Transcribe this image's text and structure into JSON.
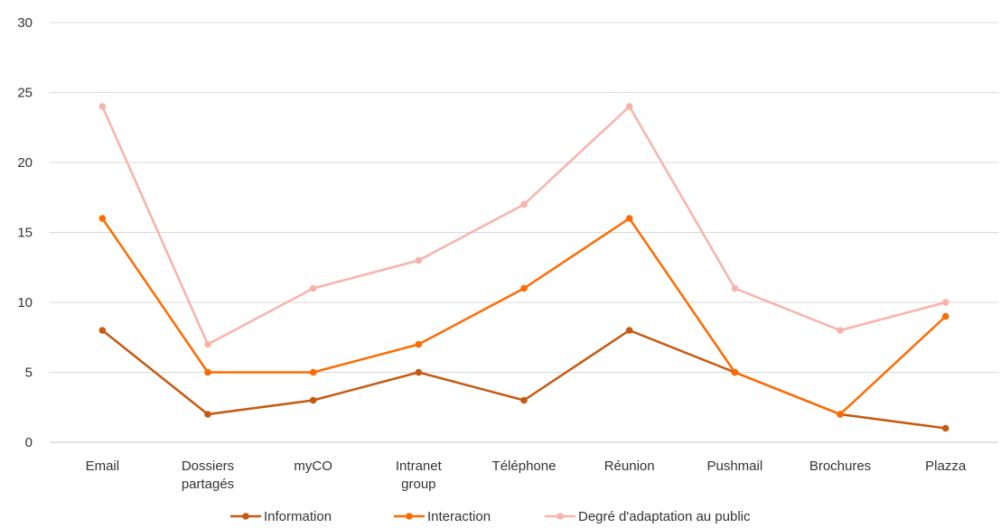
{
  "chart_data": {
    "type": "line",
    "categories": [
      [
        "Email"
      ],
      [
        "Dossiers",
        "partagés"
      ],
      [
        "myCO"
      ],
      [
        "Intranet",
        "group"
      ],
      [
        "Téléphone"
      ],
      [
        "Réunion"
      ],
      [
        "Pushmail"
      ],
      [
        "Brochures"
      ],
      [
        "Plazza"
      ]
    ],
    "ylim": [
      0,
      30
    ],
    "yticks": [
      0,
      5,
      10,
      15,
      20,
      25,
      30
    ],
    "grid": true,
    "legend_position": "bottom",
    "series": [
      {
        "name": "Information",
        "color": "#c65911",
        "values": [
          8,
          2,
          3,
          5,
          3,
          8,
          5,
          2,
          1
        ]
      },
      {
        "name": "Interaction",
        "color": "#ff6a00",
        "values": [
          16,
          5,
          5,
          7,
          11,
          16,
          5,
          2,
          9
        ]
      },
      {
        "name": "Degré d'adaptation au public",
        "color": "#f8b2a9",
        "values": [
          24,
          7,
          11,
          13,
          17,
          24,
          11,
          8,
          10
        ]
      }
    ]
  }
}
